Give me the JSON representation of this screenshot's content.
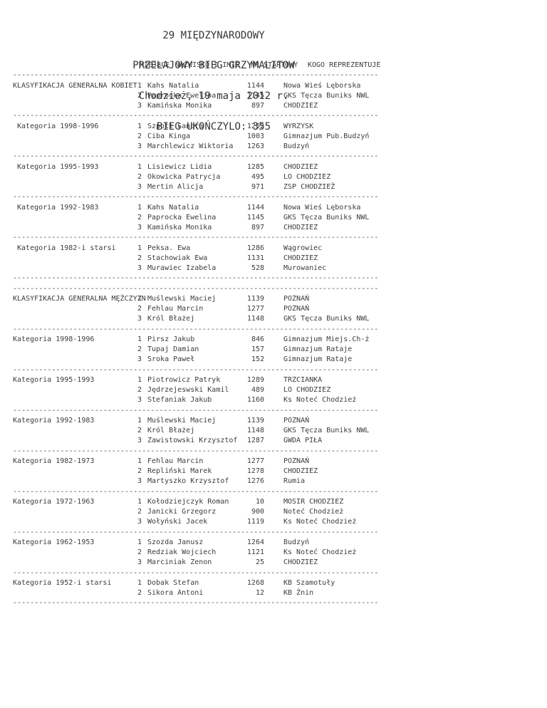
{
  "title": {
    "line1": "29 MIĘDZYNARODOWY",
    "line2": "PRZEŁAJOWY BIEG GRZYMALITOW",
    "line3": "Chodzież, 19 maja 2012 r.",
    "line4": "BIEG UKOŃCZYLO: 355"
  },
  "columns": {
    "miejsce": "MIEJSCE",
    "nazwisko": "NAZWISKO I IMIE",
    "nr": "NR STARTOWY",
    "kogo": "KOGO REPREZENTUJE"
  },
  "separator": "-------------------------------------------------------------------------------------",
  "sections": [
    {
      "label": "KLASYFIKACJA GENERALNA KOBIET",
      "rows": [
        {
          "place": "1",
          "name": "Kahs Natalia",
          "nr": "1144",
          "club": "Nowa Wieś Lęborska"
        },
        {
          "place": "2",
          "name": "Paprocka Ewelina",
          "nr": "1145",
          "club": "GKS Tęcza Buniks NWL"
        },
        {
          "place": "3",
          "name": "Kamińska Monika",
          "nr": "897",
          "club": "CHODZIEZ"
        }
      ]
    },
    {
      "label": " Kategoria 1998-1996",
      "rows": [
        {
          "place": "1",
          "name": "Szpott Sandra",
          "nr": "1252",
          "club": "WYRZYSK"
        },
        {
          "place": "2",
          "name": "Ciba Kinga",
          "nr": "1003",
          "club": "Gimnazjum Pub.Budzyń"
        },
        {
          "place": "3",
          "name": "Marchlewicz Wiktoria",
          "nr": "1263",
          "club": "Budzyń"
        }
      ]
    },
    {
      "label": " Kategoria 1995-1993",
      "rows": [
        {
          "place": "1",
          "name": "Lisiewicz Lidia",
          "nr": "1285",
          "club": "CHODZIEZ"
        },
        {
          "place": "2",
          "name": "Okowicka Patrycja",
          "nr": "495",
          "club": "LO CHODZIEZ"
        },
        {
          "place": "3",
          "name": "Mertin Alicja",
          "nr": "971",
          "club": "ZSP CHODZIEŻ"
        }
      ]
    },
    {
      "label": " Kategoria 1992-1983",
      "rows": [
        {
          "place": "1",
          "name": "Kahs Natalia",
          "nr": "1144",
          "club": "Nowa Wieś Lęborska"
        },
        {
          "place": "2",
          "name": "Paprocka Ewelina",
          "nr": "1145",
          "club": "GKS Tęcza Buniks NWL"
        },
        {
          "place": "3",
          "name": "Kamińska Monika",
          "nr": "897",
          "club": "CHODZIEZ"
        }
      ]
    },
    {
      "label": " Kategoria 1982-i starsi",
      "rows": [
        {
          "place": "1",
          "name": "Peksa. Ewa",
          "nr": "1286",
          "club": "Wągrowiec"
        },
        {
          "place": "2",
          "name": "Stachowiak Ewa",
          "nr": "1131",
          "club": "CHODZIEZ"
        },
        {
          "place": "3",
          "name": "Murawiec Izabela",
          "nr": "528",
          "club": "Murowaniec"
        }
      ]
    },
    {
      "label": "KLASYFIKACJA GENERALNA MĘŻCZYZN",
      "double_rule_before": true,
      "rows": [
        {
          "place": "1",
          "name": "Muślewski Maciej",
          "nr": "1139",
          "club": "POZNAŃ"
        },
        {
          "place": "2",
          "name": "Fehlau Marcin",
          "nr": "1277",
          "club": "POZNAŃ"
        },
        {
          "place": "3",
          "name": "Król Błażej",
          "nr": "1148",
          "club": "GKS Tęcza Buniks NWL"
        }
      ]
    },
    {
      "label": "Kategoria 1998-1996",
      "rows": [
        {
          "place": "1",
          "name": "Pirsz Jakub",
          "nr": "846",
          "club": "Gimnazjum Miejs.Ch-ż"
        },
        {
          "place": "2",
          "name": "Tupaj Damian",
          "nr": "157",
          "club": "Gimnazjum Rataje"
        },
        {
          "place": "3",
          "name": "Sroka Paweł",
          "nr": "152",
          "club": "Gimnazjum Rataje"
        }
      ]
    },
    {
      "label": "Kategoria 1995-1993",
      "rows": [
        {
          "place": "1",
          "name": "Piotrowicz Patryk",
          "nr": "1289",
          "club": "TRZCIANKA"
        },
        {
          "place": "2",
          "name": "Jędrzejeswski Kamil",
          "nr": "489",
          "club": "LO CHODZIEZ"
        },
        {
          "place": "3",
          "name": "Stefaniak Jakub",
          "nr": "1160",
          "club": "Ks Noteć Chodzież"
        }
      ]
    },
    {
      "label": "Kategoria 1992-1983",
      "rows": [
        {
          "place": "1",
          "name": "Muślewski Maciej",
          "nr": "1139",
          "club": "POZNAŃ"
        },
        {
          "place": "2",
          "name": "Król Błażej",
          "nr": "1148",
          "club": "GKS Tęcza Buniks NWL"
        },
        {
          "place": "3",
          "name": "Zawistowski Krzysztof",
          "nr": "1287",
          "club": "GWDA PIŁA"
        }
      ]
    },
    {
      "label": "Kategoria 1982-1973",
      "rows": [
        {
          "place": "1",
          "name": "Fehlau Marcin",
          "nr": "1277",
          "club": "POZNAŃ"
        },
        {
          "place": "2",
          "name": "Repliński Marek",
          "nr": "1278",
          "club": "CHODZIEZ"
        },
        {
          "place": "3",
          "name": "Martyszko Krzysztof",
          "nr": "1276",
          "club": "Rumia"
        }
      ]
    },
    {
      "label": "Kategoria 1972-1963",
      "rows": [
        {
          "place": "1",
          "name": "Kołodziejczyk Roman",
          "nr": "10",
          "club": "MOSIR CHODZIEZ"
        },
        {
          "place": "2",
          "name": "Janicki Grzegorz",
          "nr": "900",
          "club": "Noteć Chodzież"
        },
        {
          "place": "3",
          "name": "Wołyński Jacek",
          "nr": "1119",
          "club": "Ks Noteć Chodzież"
        }
      ]
    },
    {
      "label": "Kategoria 1962-1953",
      "rows": [
        {
          "place": "1",
          "name": "Szozda Janusz",
          "nr": "1264",
          "club": "Budzyń"
        },
        {
          "place": "2",
          "name": "Redziak Wojciech",
          "nr": "1121",
          "club": "Ks Noteć Chodzież"
        },
        {
          "place": "3",
          "name": "Marciniak Zenon",
          "nr": "25",
          "club": "CHODZIEZ"
        }
      ]
    },
    {
      "label": "Kategoria 1952-i starsi",
      "rows": [
        {
          "place": "1",
          "name": "Dobak Stefan",
          "nr": "1268",
          "club": "KB Szamotuły"
        },
        {
          "place": "2",
          "name": "Sikora Antoni",
          "nr": "12",
          "club": "KB Żnin"
        }
      ]
    }
  ]
}
